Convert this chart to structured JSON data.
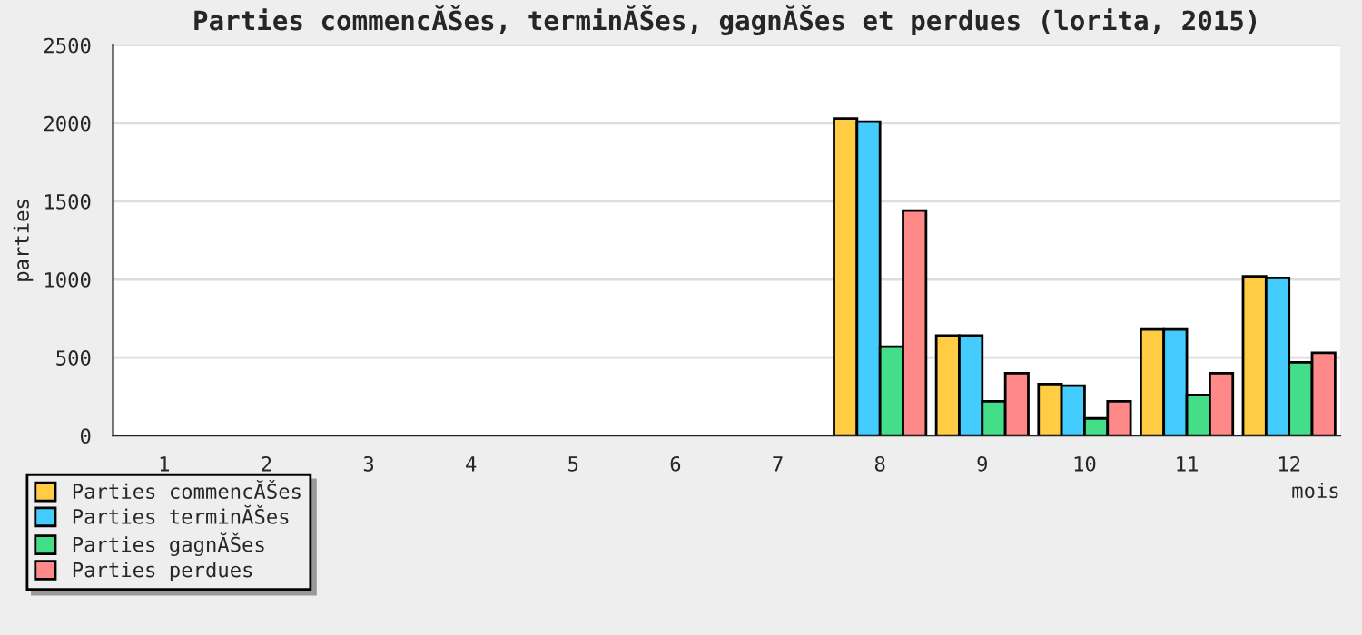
{
  "chart_data": {
    "type": "bar",
    "title": "Parties commencĂŠes, terminĂŠes, gagnĂŠes et perdues (lorita, 2015)",
    "xlabel": "mois",
    "ylabel": "parties",
    "categories": [
      "1",
      "2",
      "3",
      "4",
      "5",
      "6",
      "7",
      "8",
      "9",
      "10",
      "11",
      "12"
    ],
    "series": [
      {
        "name": "Parties commencĂŠes",
        "color": "#ffcc44",
        "values": [
          null,
          null,
          null,
          null,
          null,
          null,
          null,
          2030,
          640,
          330,
          680,
          1020
        ]
      },
      {
        "name": "Parties terminĂŠes",
        "color": "#44ccff",
        "values": [
          null,
          null,
          null,
          null,
          null,
          null,
          null,
          2010,
          640,
          320,
          680,
          1010
        ]
      },
      {
        "name": "Parties gagnĂŠes",
        "color": "#44dd88",
        "values": [
          null,
          null,
          null,
          null,
          null,
          null,
          null,
          570,
          220,
          110,
          260,
          470
        ]
      },
      {
        "name": "Parties perdues",
        "color": "#ff8888",
        "values": [
          null,
          null,
          null,
          null,
          null,
          null,
          null,
          1440,
          400,
          220,
          400,
          530
        ]
      }
    ],
    "ylim": [
      0,
      2500
    ],
    "yticks": [
      0,
      500,
      1000,
      1500,
      2000,
      2500
    ],
    "grid": "y",
    "legend": "bottom left"
  }
}
